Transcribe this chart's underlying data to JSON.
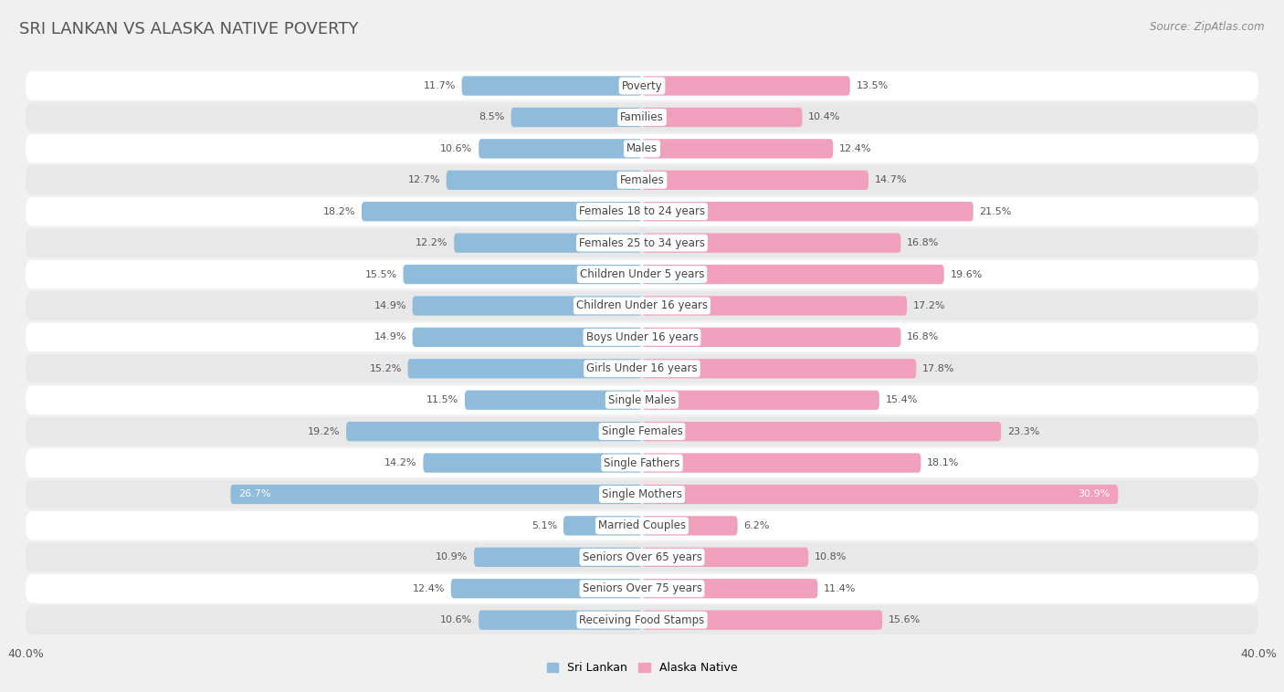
{
  "title": "SRI LANKAN VS ALASKA NATIVE POVERTY",
  "source": "Source: ZipAtlas.com",
  "categories": [
    "Poverty",
    "Families",
    "Males",
    "Females",
    "Females 18 to 24 years",
    "Females 25 to 34 years",
    "Children Under 5 years",
    "Children Under 16 years",
    "Boys Under 16 years",
    "Girls Under 16 years",
    "Single Males",
    "Single Females",
    "Single Fathers",
    "Single Mothers",
    "Married Couples",
    "Seniors Over 65 years",
    "Seniors Over 75 years",
    "Receiving Food Stamps"
  ],
  "sri_lankan": [
    11.7,
    8.5,
    10.6,
    12.7,
    18.2,
    12.2,
    15.5,
    14.9,
    14.9,
    15.2,
    11.5,
    19.2,
    14.2,
    26.7,
    5.1,
    10.9,
    12.4,
    10.6
  ],
  "alaska_native": [
    13.5,
    10.4,
    12.4,
    14.7,
    21.5,
    16.8,
    19.6,
    17.2,
    16.8,
    17.8,
    15.4,
    23.3,
    18.1,
    30.9,
    6.2,
    10.8,
    11.4,
    15.6
  ],
  "sri_lankan_color": "#8fbcdb",
  "alaska_native_color": "#f0a0bc",
  "axis_limit": 40.0,
  "bg_color": "#f0f0f0",
  "row_color_even": "#ffffff",
  "row_color_odd": "#e8e8e8",
  "legend_labels": [
    "Sri Lankan",
    "Alaska Native"
  ],
  "bar_height": 0.62,
  "fontsize_title": 13,
  "fontsize_labels": 8.5,
  "fontsize_values": 8,
  "fontsize_axis": 9,
  "fontsize_source": 8.5
}
